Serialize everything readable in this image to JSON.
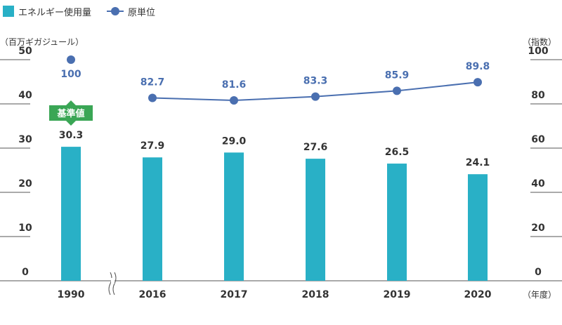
{
  "legend": {
    "bar_label": "エネルギー使用量",
    "line_label": "原単位"
  },
  "axes": {
    "left_unit": "（百万ギガジュール）",
    "right_unit": "（指数）",
    "x_unit": "（年度）"
  },
  "chart_data": {
    "type": "bar+line",
    "categories": [
      "1990",
      "2016",
      "2017",
      "2018",
      "2019",
      "2020"
    ],
    "series": [
      {
        "name": "エネルギー使用量",
        "type": "bar",
        "axis": "left",
        "values": [
          30.3,
          27.9,
          29.0,
          27.6,
          26.5,
          24.1
        ],
        "color": "#29b0c6"
      },
      {
        "name": "原単位",
        "type": "line",
        "axis": "right",
        "values": [
          100,
          82.7,
          81.6,
          83.3,
          85.9,
          89.8
        ],
        "color": "#4a6fb0"
      }
    ],
    "left_axis": {
      "ticks": [
        0,
        10,
        20,
        30,
        40,
        50
      ],
      "ylim": [
        0,
        50
      ]
    },
    "right_axis": {
      "ticks": [
        0,
        20,
        40,
        60,
        80,
        100
      ],
      "ylim": [
        0,
        100
      ]
    },
    "value_labels": {
      "bars": [
        "30.3",
        "27.9",
        "29.0",
        "27.6",
        "26.5",
        "24.1"
      ],
      "line": [
        "100",
        "82.7",
        "81.6",
        "83.3",
        "85.9",
        "89.8"
      ]
    },
    "annotation": {
      "text": "基準値",
      "category": "1990",
      "color": "#3aa655"
    },
    "axis_break_between": [
      "1990",
      "2016"
    ],
    "grid": "short tick lines at axis edges"
  }
}
